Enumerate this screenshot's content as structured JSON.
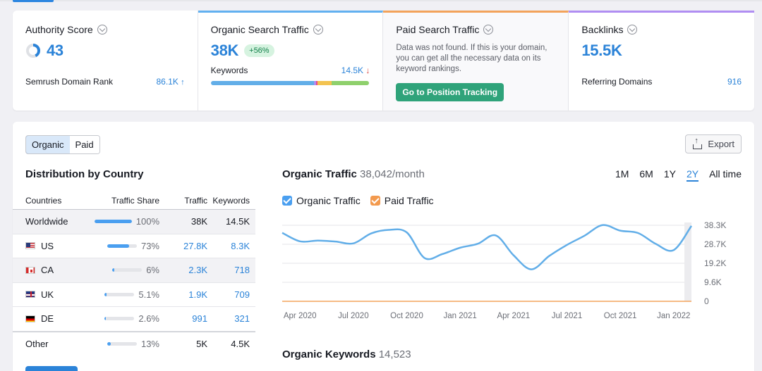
{
  "cards": {
    "authority": {
      "title": "Authority Score",
      "value": "43",
      "rank_label": "Semrush Domain Rank",
      "rank_value": "86.1K",
      "rank_arrow": "↑"
    },
    "organic": {
      "title": "Organic Search Traffic",
      "value": "38K",
      "badge": "+56%",
      "kw_label": "Keywords",
      "kw_value": "14.5K",
      "kw_arrow": "↓"
    },
    "paid": {
      "title": "Paid Search Traffic",
      "message": "Data was not found. If this is your domain, you can get all the necessary data on its keyword rankings.",
      "button": "Go to Position Tracking"
    },
    "backlinks": {
      "title": "Backlinks",
      "value": "15.5K",
      "ref_label": "Referring Domains",
      "ref_value": "916"
    }
  },
  "colors": {
    "accent": "#2b83d8",
    "green": "#2fa37a",
    "orange": "#f3a35b",
    "purple": "#b08ef2"
  },
  "toggle": {
    "organic": "Organic",
    "paid": "Paid"
  },
  "export_label": "Export",
  "distribution": {
    "title": "Distribution by Country",
    "headers": {
      "countries": "Countries",
      "share": "Traffic Share",
      "traffic": "Traffic",
      "keywords": "Keywords"
    },
    "rows": [
      {
        "country": "Worldwide",
        "share": "100%",
        "share_value": 100,
        "traffic": "38K",
        "keywords": "14.5K"
      },
      {
        "country": "US",
        "share": "73%",
        "share_value": 73,
        "traffic": "27.8K",
        "keywords": "8.3K"
      },
      {
        "country": "CA",
        "share": "6%",
        "share_value": 6,
        "traffic": "2.3K",
        "keywords": "718"
      },
      {
        "country": "UK",
        "share": "5.1%",
        "share_value": 5.1,
        "traffic": "1.9K",
        "keywords": "709"
      },
      {
        "country": "DE",
        "share": "2.6%",
        "share_value": 2.6,
        "traffic": "991",
        "keywords": "321"
      },
      {
        "country": "Other",
        "share": "13%",
        "share_value": 13,
        "traffic": "5K",
        "keywords": "4.5K"
      }
    ]
  },
  "traffic": {
    "title": "Organic Traffic",
    "subtitle": "38,042/month",
    "periods": [
      "1M",
      "6M",
      "1Y",
      "2Y",
      "All time"
    ],
    "selected_period": "2Y",
    "legend": {
      "organic": "Organic Traffic",
      "paid": "Paid Traffic"
    }
  },
  "keywords_section": {
    "title": "Organic Keywords",
    "count": "14,523"
  },
  "chart_data": {
    "type": "line",
    "title": "Organic Traffic",
    "x": [
      "Mar 2020",
      "Apr 2020",
      "May 2020",
      "Jun 2020",
      "Jul 2020",
      "Aug 2020",
      "Sep 2020",
      "Oct 2020",
      "Nov 2020",
      "Dec 2020",
      "Jan 2021",
      "Feb 2021",
      "Mar 2021",
      "Apr 2021",
      "May 2021",
      "Jun 2021",
      "Jul 2021",
      "Aug 2021",
      "Sep 2021",
      "Oct 2021",
      "Nov 2021",
      "Dec 2021",
      "Jan 2022",
      "Feb 2022"
    ],
    "x_tick_labels": [
      "Apr 2020",
      "Jul 2020",
      "Oct 2020",
      "Jan 2021",
      "Apr 2021",
      "Jul 2021",
      "Oct 2021",
      "Jan 2022"
    ],
    "series": [
      {
        "name": "Organic Traffic",
        "color": "#62aee8",
        "values": [
          34500,
          30200,
          30600,
          30100,
          29200,
          34200,
          36000,
          34700,
          21800,
          23800,
          27000,
          29000,
          33200,
          23200,
          16100,
          22800,
          28400,
          33100,
          38400,
          35600,
          34400,
          28900,
          25800,
          38000
        ]
      },
      {
        "name": "Paid Traffic",
        "color": "#f3a35b",
        "values": [
          0,
          0,
          0,
          0,
          0,
          0,
          0,
          0,
          0,
          0,
          0,
          0,
          0,
          0,
          0,
          0,
          0,
          0,
          0,
          0,
          0,
          0,
          0,
          0
        ]
      }
    ],
    "y_ticks": [
      "38.3K",
      "28.7K",
      "19.2K",
      "9.6K",
      "0"
    ],
    "ylim": [
      0,
      38300
    ],
    "xlabel": "",
    "ylabel": ""
  }
}
